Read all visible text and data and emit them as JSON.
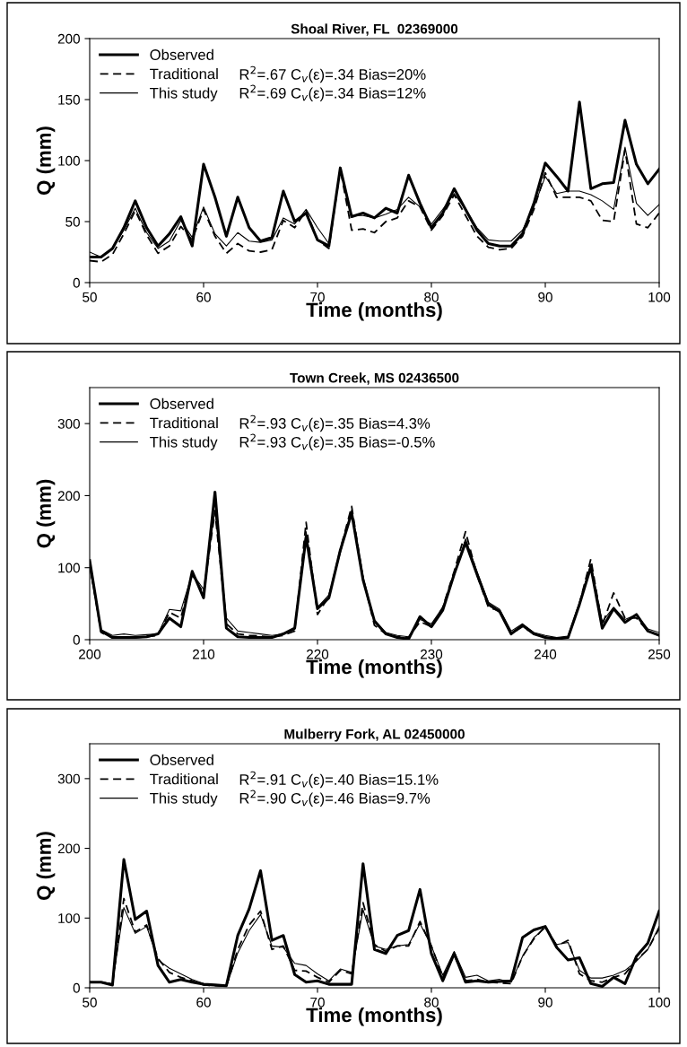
{
  "chart_data": [
    {
      "type": "line",
      "title": "Shoal River, FL  02369000",
      "xlabel": "Time (months)",
      "ylabel": "Q (mm)",
      "x": [
        50,
        51,
        52,
        53,
        54,
        55,
        56,
        57,
        58,
        59,
        60,
        61,
        62,
        63,
        64,
        65,
        66,
        67,
        68,
        69,
        70,
        71,
        72,
        73,
        74,
        75,
        76,
        77,
        78,
        79,
        80,
        81,
        82,
        83,
        84,
        85,
        86,
        87,
        88,
        89,
        90,
        91,
        92,
        93,
        94,
        95,
        96,
        97,
        98,
        99,
        100
      ],
      "xlim": [
        50,
        100
      ],
      "xticks": [
        50,
        60,
        70,
        80,
        90,
        100
      ],
      "ylim": [
        0,
        200
      ],
      "yticks": [
        0,
        50,
        100,
        150,
        200
      ],
      "grid": false,
      "legend": "top left",
      "series": [
        {
          "name": "Observed",
          "color": "#000000",
          "line_style": "solid",
          "values": [
            21,
            21,
            28,
            45,
            67,
            45,
            30,
            40,
            54,
            30,
            97,
            70,
            38,
            70,
            45,
            34,
            37,
            75,
            50,
            57,
            35,
            30,
            94,
            54,
            57,
            53,
            61,
            57,
            88,
            65,
            45,
            57,
            77,
            60,
            43,
            32,
            30,
            30,
            40,
            65,
            98,
            87,
            75,
            148,
            77,
            81,
            82,
            133,
            97,
            81,
            93
          ]
        },
        {
          "name": "Traditional",
          "color": "#000000",
          "line_style": "dashed",
          "values": [
            18,
            17,
            23,
            40,
            59,
            39,
            24,
            30,
            46,
            35,
            60,
            38,
            24,
            32,
            26,
            25,
            27,
            51,
            45,
            59,
            35,
            28,
            93,
            43,
            44,
            41,
            50,
            53,
            67,
            62,
            43,
            55,
            72,
            55,
            38,
            29,
            27,
            28,
            38,
            60,
            90,
            70,
            70,
            70,
            67,
            51,
            50,
            109,
            48,
            45,
            57
          ]
        },
        {
          "name": "This study",
          "color": "#000000",
          "line_style": "solid",
          "values": [
            25,
            21,
            28,
            43,
            61,
            41,
            28,
            34,
            51,
            37,
            62,
            40,
            30,
            41,
            34,
            33,
            35,
            53,
            48,
            60,
            45,
            32,
            93,
            55,
            55,
            53,
            56,
            60,
            70,
            62,
            48,
            60,
            73,
            60,
            45,
            35,
            34,
            34,
            43,
            62,
            87,
            73,
            75,
            75,
            72,
            67,
            60,
            111,
            65,
            55,
            64
          ]
        }
      ],
      "annotations": [
        "R$^{2}$=.67 C$_{v}$(ε)=.34 Bias=20%",
        "R$^{2}$=.69 C$_{v}$(ε)=.34 Bias=12%"
      ]
    },
    {
      "type": "line",
      "title": "Town Creek, MS 02436500",
      "xlabel": "Time (months)",
      "ylabel": "Q (mm)",
      "x": [
        200,
        201,
        202,
        203,
        204,
        205,
        206,
        207,
        208,
        209,
        210,
        211,
        212,
        213,
        214,
        215,
        216,
        217,
        218,
        219,
        220,
        221,
        222,
        223,
        224,
        225,
        226,
        227,
        228,
        229,
        230,
        231,
        232,
        233,
        234,
        235,
        236,
        237,
        238,
        239,
        240,
        241,
        242,
        243,
        244,
        245,
        246,
        247,
        248,
        249,
        250
      ],
      "xlim": [
        200,
        250
      ],
      "xticks": [
        200,
        210,
        220,
        230,
        240,
        250
      ],
      "ylim": [
        0,
        350
      ],
      "yticks": [
        0,
        100,
        200,
        300
      ],
      "grid": false,
      "legend": "top left",
      "series": [
        {
          "name": "Observed",
          "color": "#000000",
          "line_style": "solid",
          "values": [
            110,
            12,
            3,
            3,
            3,
            4,
            8,
            30,
            18,
            95,
            58,
            205,
            16,
            4,
            3,
            3,
            3,
            8,
            16,
            143,
            43,
            58,
            124,
            176,
            83,
            26,
            8,
            3,
            1,
            32,
            18,
            41,
            91,
            135,
            91,
            49,
            39,
            8,
            20,
            8,
            3,
            1,
            3,
            49,
            101,
            16,
            43,
            24,
            35,
            12,
            6
          ]
        },
        {
          "name": "Traditional",
          "color": "#000000",
          "line_style": "dashed",
          "values": [
            105,
            10,
            3,
            3,
            3,
            4,
            6,
            38,
            30,
            90,
            65,
            178,
            22,
            8,
            6,
            5,
            4,
            6,
            12,
            163,
            35,
            60,
            125,
            185,
            85,
            20,
            8,
            4,
            3,
            25,
            18,
            45,
            95,
            150,
            90,
            45,
            40,
            8,
            18,
            8,
            4,
            2,
            3,
            50,
            112,
            20,
            65,
            30,
            30,
            12,
            6
          ]
        },
        {
          "name": "This study",
          "color": "#000000",
          "line_style": "solid",
          "values": [
            100,
            14,
            6,
            8,
            6,
            7,
            8,
            42,
            40,
            92,
            70,
            180,
            30,
            12,
            10,
            8,
            6,
            8,
            14,
            150,
            45,
            62,
            120,
            180,
            88,
            25,
            10,
            6,
            4,
            28,
            22,
            45,
            90,
            140,
            95,
            52,
            42,
            12,
            22,
            10,
            6,
            3,
            5,
            52,
            105,
            25,
            45,
            28,
            35,
            15,
            10
          ]
        }
      ],
      "annotations": [
        "R$^{2}$=.93 C$_{v}$(ε)=.35 Bias=4.3%",
        "R$^{2}$=.93 C$_{v}$(ε)=.35 Bias=-0.5%"
      ]
    },
    {
      "type": "line",
      "title": "Mulberry Fork, AL 02450000",
      "xlabel": "Time (months)",
      "ylabel": "Q (mm)",
      "x": [
        50,
        51,
        52,
        53,
        54,
        55,
        56,
        57,
        58,
        59,
        60,
        61,
        62,
        63,
        64,
        65,
        66,
        67,
        68,
        69,
        70,
        71,
        72,
        73,
        74,
        75,
        76,
        77,
        78,
        79,
        80,
        81,
        82,
        83,
        84,
        85,
        86,
        87,
        88,
        89,
        90,
        91,
        92,
        93,
        94,
        95,
        96,
        97,
        98,
        99,
        100
      ],
      "xlim": [
        50,
        100
      ],
      "xticks": [
        50,
        60,
        70,
        80,
        90,
        100
      ],
      "ylim": [
        0,
        350
      ],
      "yticks": [
        0,
        100,
        200,
        300
      ],
      "grid": false,
      "legend": "top left",
      "series": [
        {
          "name": "Observed",
          "color": "#000000",
          "line_style": "solid",
          "values": [
            8,
            8,
            4,
            184,
            98,
            110,
            32,
            8,
            12,
            8,
            5,
            4,
            3,
            75,
            113,
            168,
            68,
            75,
            19,
            8,
            10,
            5,
            5,
            5,
            178,
            55,
            49,
            75,
            82,
            141,
            49,
            10,
            49,
            8,
            10,
            8,
            9,
            10,
            72,
            83,
            88,
            58,
            40,
            43,
            6,
            2,
            15,
            6,
            45,
            64,
            110
          ]
        },
        {
          "name": "Traditional",
          "color": "#000000",
          "line_style": "dashed",
          "values": [
            8,
            8,
            5,
            128,
            80,
            90,
            42,
            22,
            15,
            10,
            4,
            3,
            2,
            55,
            90,
            110,
            55,
            60,
            25,
            24,
            15,
            8,
            25,
            20,
            122,
            62,
            52,
            60,
            60,
            95,
            60,
            15,
            47,
            10,
            12,
            8,
            7,
            6,
            45,
            70,
            88,
            60,
            68,
            20,
            10,
            8,
            15,
            20,
            40,
            55,
            85
          ]
        },
        {
          "name": "This study",
          "color": "#000000",
          "line_style": "solid",
          "values": [
            8,
            8,
            6,
            115,
            78,
            88,
            40,
            28,
            20,
            12,
            6,
            4,
            2,
            50,
            82,
            105,
            60,
            58,
            35,
            32,
            20,
            10,
            27,
            22,
            112,
            60,
            55,
            60,
            62,
            92,
            60,
            18,
            52,
            15,
            18,
            10,
            12,
            8,
            45,
            72,
            86,
            62,
            65,
            25,
            14,
            14,
            18,
            25,
            38,
            55,
            88
          ]
        }
      ],
      "annotations": [
        "R$^{2}$=.91 C$_{v}$(ε)=.40 Bias=15.1%",
        "R$^{2}$=.90 C$_{v}$(ε)=.46 Bias=9.7%"
      ]
    }
  ]
}
